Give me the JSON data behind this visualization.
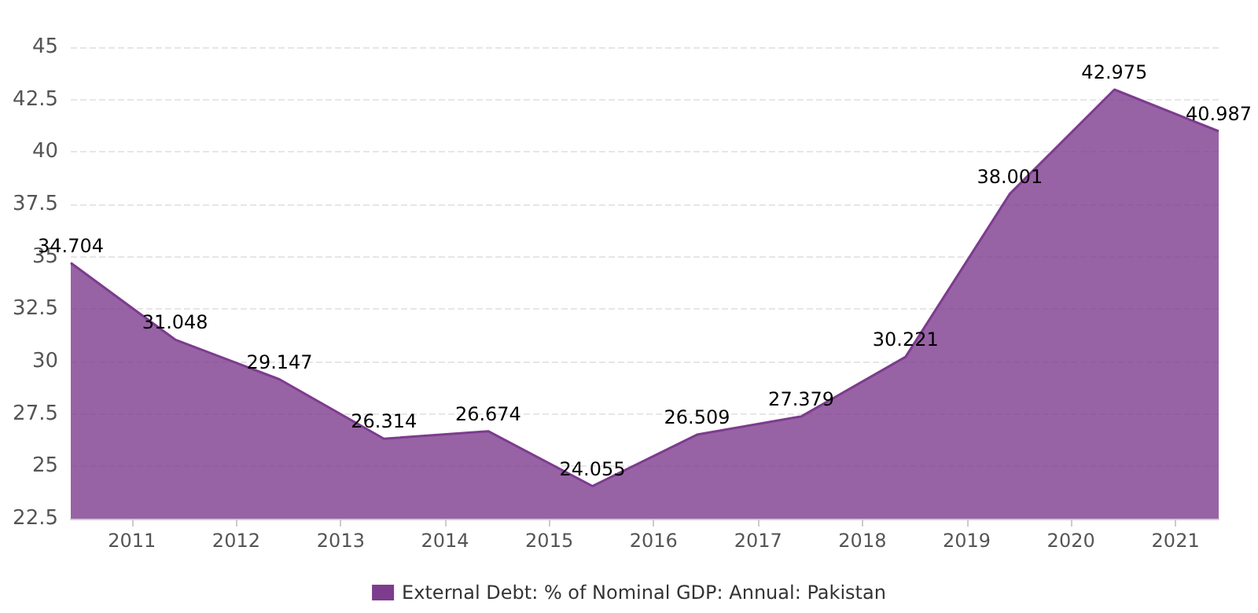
{
  "chart_data": {
    "type": "area",
    "x": [
      "2010-06",
      "2011-06",
      "2012-06",
      "2013-06",
      "2014-06",
      "2015-06",
      "2016-06",
      "2017-06",
      "2018-06",
      "2019-06",
      "2020-06",
      "2021-06"
    ],
    "series": [
      {
        "name": "External Debt: % of Nominal GDP: Annual: Pakistan",
        "color": "#7d3c8e",
        "values": [
          34.704,
          31.048,
          29.147,
          26.314,
          26.674,
          24.055,
          26.509,
          27.379,
          30.221,
          38.001,
          42.975,
          40.987
        ]
      }
    ],
    "xlim": [
      "2010-06",
      "2021-06"
    ],
    "xticks": [
      "2011",
      "2012",
      "2013",
      "2014",
      "2015",
      "2016",
      "2017",
      "2018",
      "2019",
      "2020",
      "2021"
    ],
    "ylim": [
      22.5,
      45
    ],
    "yticks": [
      22.5,
      25,
      27.5,
      30,
      32.5,
      35,
      37.5,
      40,
      42.5,
      45
    ],
    "grid": "y",
    "legend": "bottom",
    "data_labels": true,
    "marker": "none",
    "line_style": "solid"
  }
}
